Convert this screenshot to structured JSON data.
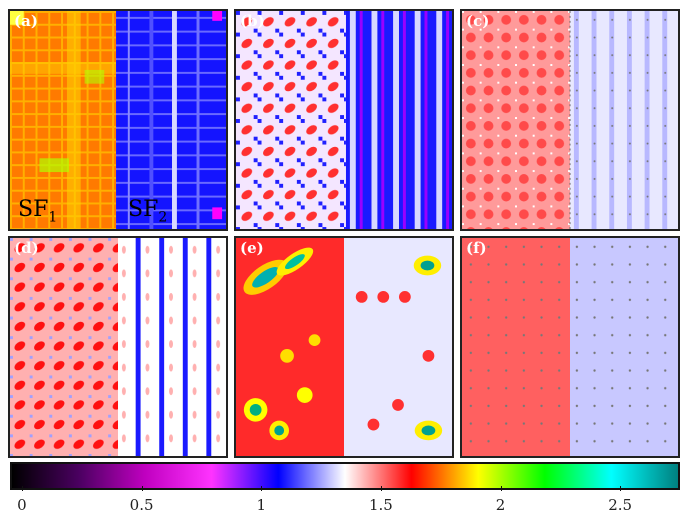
{
  "panels": [
    {
      "id": "a",
      "label": "(a)",
      "left_field": "SF1",
      "right_field": "SF2"
    },
    {
      "id": "b",
      "label": "(b)"
    },
    {
      "id": "c",
      "label": "(c)"
    },
    {
      "id": "d",
      "label": "(d)"
    },
    {
      "id": "e",
      "label": "(e)"
    },
    {
      "id": "f",
      "label": "(f)"
    }
  ],
  "sf_labels": {
    "sf1_base": "SF",
    "sf1_sub": "1",
    "sf2_base": "SF",
    "sf2_sub": "2"
  },
  "colorbar": {
    "ticks": [
      "0",
      "0.5",
      "1",
      "1.5",
      "2",
      "2.5"
    ],
    "tick_values": [
      0,
      0.5,
      1,
      1.5,
      2,
      2.5
    ],
    "range": [
      -0.05,
      2.75
    ],
    "colors": [
      "#000000",
      "#4a0060",
      "#c000c0",
      "#ff33ff",
      "#0000ff",
      "#ffffff",
      "#ff0000",
      "#ffff00",
      "#00ff00",
      "#00ffff",
      "#008080"
    ]
  }
}
